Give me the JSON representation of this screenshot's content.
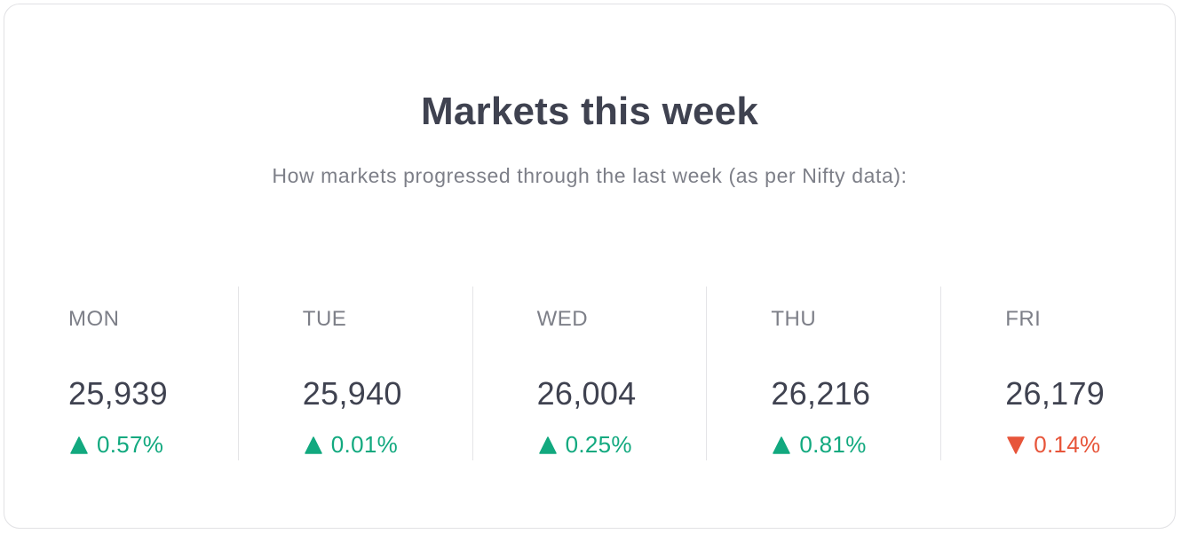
{
  "card": {
    "title": "Markets this week",
    "subtitle": "How markets progressed through the last week (as per Nifty data):"
  },
  "colors": {
    "up": "#12a97f",
    "down": "#e7553a",
    "text_dark": "#3f4250",
    "text_muted": "#7d7f88"
  },
  "days": [
    {
      "label": "MON",
      "value": "25,939",
      "change": "0.57%",
      "direction": "up",
      "icon": "triangle-up-icon"
    },
    {
      "label": "TUE",
      "value": "25,940",
      "change": "0.01%",
      "direction": "up",
      "icon": "triangle-up-icon"
    },
    {
      "label": "WED",
      "value": "26,004",
      "change": "0.25%",
      "direction": "up",
      "icon": "triangle-up-icon"
    },
    {
      "label": "THU",
      "value": "26,216",
      "change": "0.81%",
      "direction": "up",
      "icon": "triangle-up-icon"
    },
    {
      "label": "FRI",
      "value": "26,179",
      "change": "0.14%",
      "direction": "down",
      "icon": "triangle-down-icon"
    }
  ]
}
